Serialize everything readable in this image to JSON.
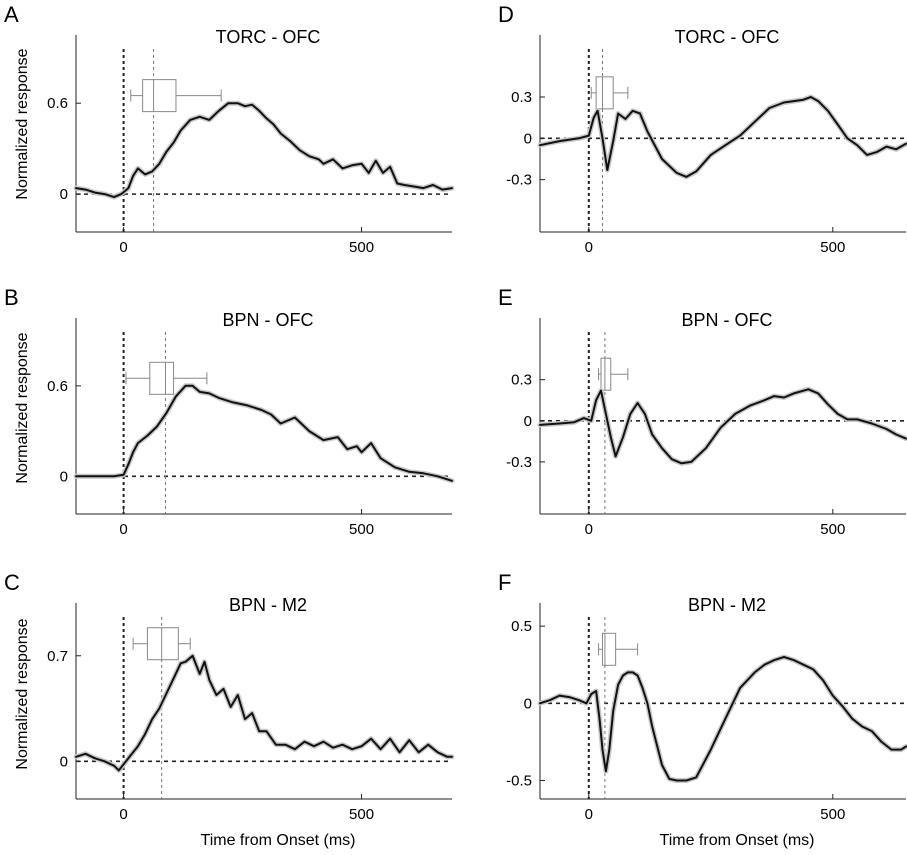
{
  "figure": {
    "y_axis_label": "Normalized response",
    "x_axis_label": "Time from Onset (ms)"
  },
  "chart_data": [
    {
      "type": "line",
      "panel": "A",
      "title": "TORC - OFC",
      "xlabel": "",
      "ylabel": "Normalized response",
      "xlim": [
        -100,
        690
      ],
      "ylim": [
        -0.25,
        1.05
      ],
      "xticks": [
        0,
        500
      ],
      "yticks": [
        0,
        0.6
      ],
      "ytick_labels": [
        "0",
        "0.6"
      ],
      "zero_line": 0,
      "onset_line": 0,
      "median_line": 63,
      "boxplot": {
        "whisker_low": 15,
        "q1": 40,
        "median": 63,
        "q3": 110,
        "whisker_high": 205,
        "y": 0.65
      },
      "series": [
        {
          "x": [
            -100,
            -80,
            -60,
            -40,
            -20,
            -5,
            10,
            20,
            30,
            45,
            60,
            75,
            90,
            105,
            120,
            140,
            160,
            180,
            200,
            220,
            240,
            255,
            270,
            285,
            300,
            315,
            330,
            350,
            370,
            390,
            410,
            420,
            440,
            460,
            480,
            500,
            515,
            530,
            545,
            560,
            575,
            590,
            610,
            630,
            650,
            670,
            690
          ],
          "y": [
            0.04,
            0.03,
            0.01,
            0.0,
            -0.02,
            0.0,
            0.04,
            0.12,
            0.17,
            0.13,
            0.15,
            0.2,
            0.28,
            0.34,
            0.42,
            0.49,
            0.51,
            0.49,
            0.55,
            0.6,
            0.6,
            0.58,
            0.59,
            0.55,
            0.5,
            0.46,
            0.4,
            0.35,
            0.29,
            0.25,
            0.23,
            0.2,
            0.23,
            0.17,
            0.19,
            0.2,
            0.14,
            0.22,
            0.14,
            0.18,
            0.07,
            0.06,
            0.05,
            0.04,
            0.06,
            0.03,
            0.04
          ]
        }
      ]
    },
    {
      "type": "line",
      "panel": "B",
      "title": "BPN  - OFC",
      "xlabel": "",
      "ylabel": "Normalized response",
      "xlim": [
        -100,
        690
      ],
      "ylim": [
        -0.25,
        1.05
      ],
      "xticks": [
        0,
        500
      ],
      "yticks": [
        0,
        0.6
      ],
      "ytick_labels": [
        "0",
        "0.6"
      ],
      "zero_line": 0,
      "onset_line": 0,
      "median_line": 88,
      "boxplot": {
        "whisker_low": 5,
        "q1": 55,
        "median": 88,
        "q3": 105,
        "whisker_high": 175,
        "y": 0.65
      },
      "series": [
        {
          "x": [
            -100,
            -60,
            -20,
            0,
            10,
            20,
            30,
            50,
            70,
            90,
            110,
            130,
            145,
            160,
            180,
            200,
            230,
            260,
            290,
            310,
            330,
            360,
            390,
            420,
            450,
            470,
            490,
            500,
            520,
            540,
            570,
            600,
            630,
            660,
            690
          ],
          "y": [
            0.0,
            0.0,
            0.0,
            0.01,
            0.08,
            0.16,
            0.22,
            0.27,
            0.33,
            0.42,
            0.53,
            0.6,
            0.6,
            0.56,
            0.55,
            0.52,
            0.49,
            0.47,
            0.44,
            0.41,
            0.35,
            0.39,
            0.3,
            0.24,
            0.26,
            0.18,
            0.2,
            0.16,
            0.22,
            0.12,
            0.06,
            0.03,
            0.02,
            0.0,
            -0.03
          ]
        }
      ]
    },
    {
      "type": "line",
      "panel": "C",
      "title": "BPN - M2",
      "xlabel": "Time from Onset (ms)",
      "ylabel": "Normalized response",
      "xlim": [
        -100,
        690
      ],
      "ylim": [
        -0.25,
        1.05
      ],
      "xticks": [
        0,
        500
      ],
      "yticks": [
        0,
        0.7
      ],
      "ytick_labels": [
        "0",
        "0.7"
      ],
      "zero_line": 0,
      "onset_line": 0,
      "median_line": 80,
      "boxplot": {
        "whisker_low": 20,
        "q1": 50,
        "median": 80,
        "q3": 115,
        "whisker_high": 140,
        "y": 0.78
      },
      "series": [
        {
          "x": [
            -100,
            -80,
            -60,
            -40,
            -20,
            -10,
            0,
            15,
            30,
            45,
            60,
            75,
            90,
            105,
            120,
            130,
            145,
            160,
            170,
            180,
            195,
            210,
            225,
            240,
            255,
            270,
            285,
            300,
            320,
            340,
            360,
            380,
            400,
            420,
            440,
            460,
            480,
            500,
            520,
            540,
            560,
            580,
            600,
            620,
            640,
            660,
            680,
            690
          ],
          "y": [
            0.03,
            0.05,
            0.02,
            0.0,
            -0.03,
            -0.06,
            -0.02,
            0.04,
            0.1,
            0.18,
            0.28,
            0.35,
            0.45,
            0.55,
            0.65,
            0.66,
            0.7,
            0.58,
            0.66,
            0.54,
            0.44,
            0.48,
            0.36,
            0.44,
            0.28,
            0.32,
            0.2,
            0.2,
            0.11,
            0.11,
            0.08,
            0.13,
            0.1,
            0.13,
            0.09,
            0.11,
            0.08,
            0.1,
            0.15,
            0.08,
            0.15,
            0.06,
            0.14,
            0.06,
            0.11,
            0.06,
            0.03,
            0.03
          ]
        }
      ]
    },
    {
      "type": "line",
      "panel": "D",
      "title": "TORC - OFC",
      "xlabel": "",
      "ylabel": "",
      "xlim": [
        -100,
        650
      ],
      "ylim": [
        -0.68,
        0.75
      ],
      "xticks": [
        0,
        500
      ],
      "yticks": [
        -0.3,
        0,
        0.3
      ],
      "ytick_labels": [
        "-0.3",
        "0",
        "0.3"
      ],
      "zero_line": 0,
      "onset_line": 0,
      "median_line": 28,
      "boxplot": {
        "whisker_low": 5,
        "q1": 15,
        "median": 28,
        "q3": 50,
        "whisker_high": 80,
        "y": 0.33
      },
      "series": [
        {
          "x": [
            -100,
            -60,
            -20,
            0,
            10,
            18,
            28,
            38,
            50,
            60,
            75,
            90,
            105,
            120,
            150,
            180,
            200,
            220,
            250,
            280,
            310,
            340,
            370,
            400,
            420,
            440,
            455,
            470,
            490,
            510,
            530,
            550,
            570,
            590,
            610,
            630,
            650
          ],
          "y": [
            -0.05,
            -0.02,
            0.0,
            0.02,
            0.15,
            0.2,
            0.0,
            -0.23,
            -0.02,
            0.18,
            0.14,
            0.2,
            0.18,
            0.05,
            -0.15,
            -0.25,
            -0.28,
            -0.24,
            -0.12,
            -0.05,
            0.02,
            0.12,
            0.22,
            0.26,
            0.27,
            0.28,
            0.3,
            0.27,
            0.2,
            0.1,
            0.0,
            -0.05,
            -0.12,
            -0.1,
            -0.06,
            -0.08,
            -0.04
          ]
        }
      ]
    },
    {
      "type": "line",
      "panel": "E",
      "title": "BPN  - OFC",
      "xlabel": "",
      "ylabel": "",
      "xlim": [
        -100,
        650
      ],
      "ylim": [
        -0.68,
        0.75
      ],
      "xticks": [
        0,
        500
      ],
      "yticks": [
        -0.3,
        0,
        0.3
      ],
      "ytick_labels": [
        "-0.3",
        "0",
        "0.3"
      ],
      "zero_line": 0,
      "onset_line": 0,
      "median_line": 33,
      "boxplot": {
        "whisker_low": 20,
        "q1": 25,
        "median": 33,
        "q3": 45,
        "whisker_high": 80,
        "y": 0.34
      },
      "series": [
        {
          "x": [
            -100,
            -60,
            -30,
            -10,
            5,
            15,
            25,
            35,
            45,
            55,
            70,
            85,
            100,
            115,
            130,
            150,
            170,
            190,
            210,
            240,
            270,
            300,
            330,
            360,
            380,
            400,
            420,
            450,
            470,
            490,
            510,
            530,
            550,
            580,
            610,
            630,
            650
          ],
          "y": [
            -0.03,
            -0.02,
            -0.01,
            0.02,
            0.0,
            0.15,
            0.22,
            0.05,
            -0.12,
            -0.26,
            -0.12,
            0.05,
            0.13,
            0.05,
            -0.1,
            -0.2,
            -0.28,
            -0.31,
            -0.3,
            -0.2,
            -0.05,
            0.05,
            0.11,
            0.15,
            0.18,
            0.17,
            0.2,
            0.23,
            0.2,
            0.12,
            0.05,
            0.01,
            0.01,
            -0.02,
            -0.06,
            -0.1,
            -0.13
          ]
        }
      ]
    },
    {
      "type": "line",
      "panel": "F",
      "title": "BPN - M2",
      "xlabel": "Time from Onset (ms)",
      "ylabel": "",
      "xlim": [
        -100,
        650
      ],
      "ylim": [
        -0.62,
        0.65
      ],
      "xticks": [
        0,
        500
      ],
      "yticks": [
        -0.5,
        0,
        0.5
      ],
      "ytick_labels": [
        "-0.5",
        "0",
        "0.5"
      ],
      "zero_line": 0,
      "onset_line": 0,
      "median_line": 33,
      "boxplot": {
        "whisker_low": 20,
        "q1": 28,
        "median": 33,
        "q3": 55,
        "whisker_high": 100,
        "y": 0.35
      },
      "series": [
        {
          "x": [
            -100,
            -80,
            -60,
            -40,
            -20,
            -5,
            5,
            15,
            22,
            28,
            35,
            42,
            50,
            60,
            70,
            80,
            90,
            100,
            110,
            120,
            130,
            150,
            165,
            180,
            200,
            220,
            250,
            280,
            310,
            340,
            360,
            380,
            400,
            420,
            440,
            460,
            480,
            500,
            520,
            540,
            560,
            580,
            600,
            620,
            640,
            650
          ],
          "y": [
            0.0,
            0.02,
            0.05,
            0.04,
            0.02,
            0.0,
            0.06,
            0.08,
            -0.1,
            -0.3,
            -0.44,
            -0.3,
            -0.05,
            0.12,
            0.18,
            0.2,
            0.2,
            0.18,
            0.1,
            0.0,
            -0.15,
            -0.4,
            -0.49,
            -0.5,
            -0.5,
            -0.48,
            -0.3,
            -0.1,
            0.1,
            0.2,
            0.25,
            0.28,
            0.3,
            0.28,
            0.25,
            0.22,
            0.15,
            0.05,
            -0.02,
            -0.1,
            -0.15,
            -0.18,
            -0.25,
            -0.3,
            -0.3,
            -0.28
          ]
        }
      ]
    }
  ]
}
